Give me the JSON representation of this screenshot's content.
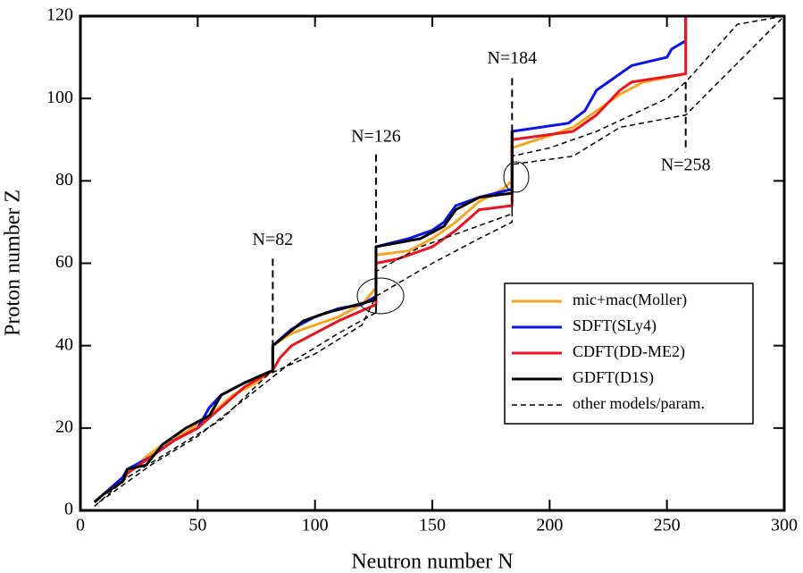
{
  "chart_data": {
    "type": "line",
    "xlabel": "Neutron number  N",
    "ylabel": "Proton  number  Z",
    "xlim": [
      0,
      300
    ],
    "ylim": [
      0,
      120
    ],
    "xticks": [
      0,
      50,
      100,
      150,
      200,
      250,
      300
    ],
    "yticks": [
      0,
      20,
      40,
      60,
      80,
      100,
      120
    ],
    "legend": "lower right",
    "series": [
      {
        "name": "mic+mac(Moller)",
        "color": "#f5a623",
        "style": "solid",
        "x": [
          6,
          10,
          18,
          20,
          28,
          35,
          45,
          55,
          65,
          75,
          82,
          82,
          90,
          100,
          110,
          120,
          126,
          126,
          140,
          150,
          160,
          170,
          180,
          184,
          184,
          200,
          210,
          220,
          230,
          240,
          258
        ],
        "values": [
          2,
          4,
          7,
          9,
          13,
          16,
          19,
          23,
          28,
          31,
          34,
          40,
          43,
          45,
          47,
          50,
          54,
          62,
          63,
          66,
          70,
          75,
          78,
          80,
          88,
          91,
          93,
          97,
          101,
          104,
          106
        ]
      },
      {
        "name": "SDFT(SLy4)",
        "color": "#0a14e6",
        "style": "solid",
        "x": [
          6,
          12,
          18,
          20,
          30,
          40,
          50,
          55,
          60,
          70,
          82,
          82,
          90,
          100,
          110,
          120,
          126,
          126,
          140,
          150,
          155,
          160,
          170,
          184,
          184,
          208,
          215,
          220,
          225,
          235,
          250,
          252,
          258,
          258
        ],
        "values": [
          2,
          5,
          8,
          10,
          13,
          17,
          20,
          25,
          28,
          31,
          34,
          40,
          44,
          47,
          49,
          50,
          52,
          64,
          66,
          68,
          70,
          74,
          76,
          78,
          92,
          94,
          97,
          102,
          104,
          108,
          110,
          112,
          114,
          120
        ]
      },
      {
        "name": "CDFT(DD-ME2)",
        "color": "#e8141e",
        "style": "solid",
        "x": [
          6,
          10,
          18,
          20,
          30,
          40,
          50,
          60,
          70,
          82,
          85,
          90,
          100,
          110,
          126,
          126,
          135,
          150,
          160,
          170,
          184,
          184,
          210,
          220,
          230,
          235,
          258,
          258
        ],
        "values": [
          2,
          4,
          7,
          9,
          13,
          17,
          20,
          25,
          30,
          34,
          37,
          40,
          43,
          46,
          50,
          60,
          61,
          64,
          68,
          73,
          74,
          90,
          92,
          96,
          102,
          104,
          106,
          120
        ]
      },
      {
        "name": "GDFT(D1S)",
        "color": "#000000",
        "style": "solid",
        "x": [
          6,
          10,
          18,
          20,
          28,
          35,
          45,
          55,
          60,
          70,
          82,
          82,
          95,
          105,
          125,
          126,
          126,
          145,
          155,
          160,
          170,
          184,
          184
        ],
        "values": [
          2,
          4,
          7,
          10,
          11,
          16,
          20,
          23,
          28,
          31,
          34,
          40,
          46,
          48,
          51,
          52,
          64,
          66,
          69,
          73,
          76,
          77,
          92
        ]
      },
      {
        "name": "other models/param.",
        "color": "#000000",
        "style": "dashed",
        "x": [
          6,
          20,
          40,
          60,
          80,
          100,
          120,
          126,
          150,
          170,
          184,
          184,
          210,
          230,
          258,
          300,
          null,
          8,
          30,
          50,
          70,
          90,
          110,
          126,
          126,
          145,
          184,
          184,
          200,
          220,
          250,
          258,
          280,
          300
        ],
        "values": [
          1,
          8,
          15,
          22,
          33,
          38,
          45,
          52,
          60,
          66,
          70,
          84,
          86,
          93,
          96,
          120,
          null,
          2,
          11,
          18,
          27,
          36,
          43,
          48,
          58,
          64,
          72,
          86,
          88,
          92,
          100,
          104,
          118,
          120
        ]
      }
    ],
    "annotations": [
      {
        "text": "N=82",
        "x": 82,
        "y": [
          34,
          62
        ]
      },
      {
        "text": "N=126",
        "x": 126,
        "y": [
          48,
          87
        ]
      },
      {
        "text": "N=184",
        "x": 184,
        "y": [
          75,
          106
        ]
      },
      {
        "text": "N=258",
        "x": 258,
        "y": [
          104,
          87
        ]
      }
    ]
  }
}
